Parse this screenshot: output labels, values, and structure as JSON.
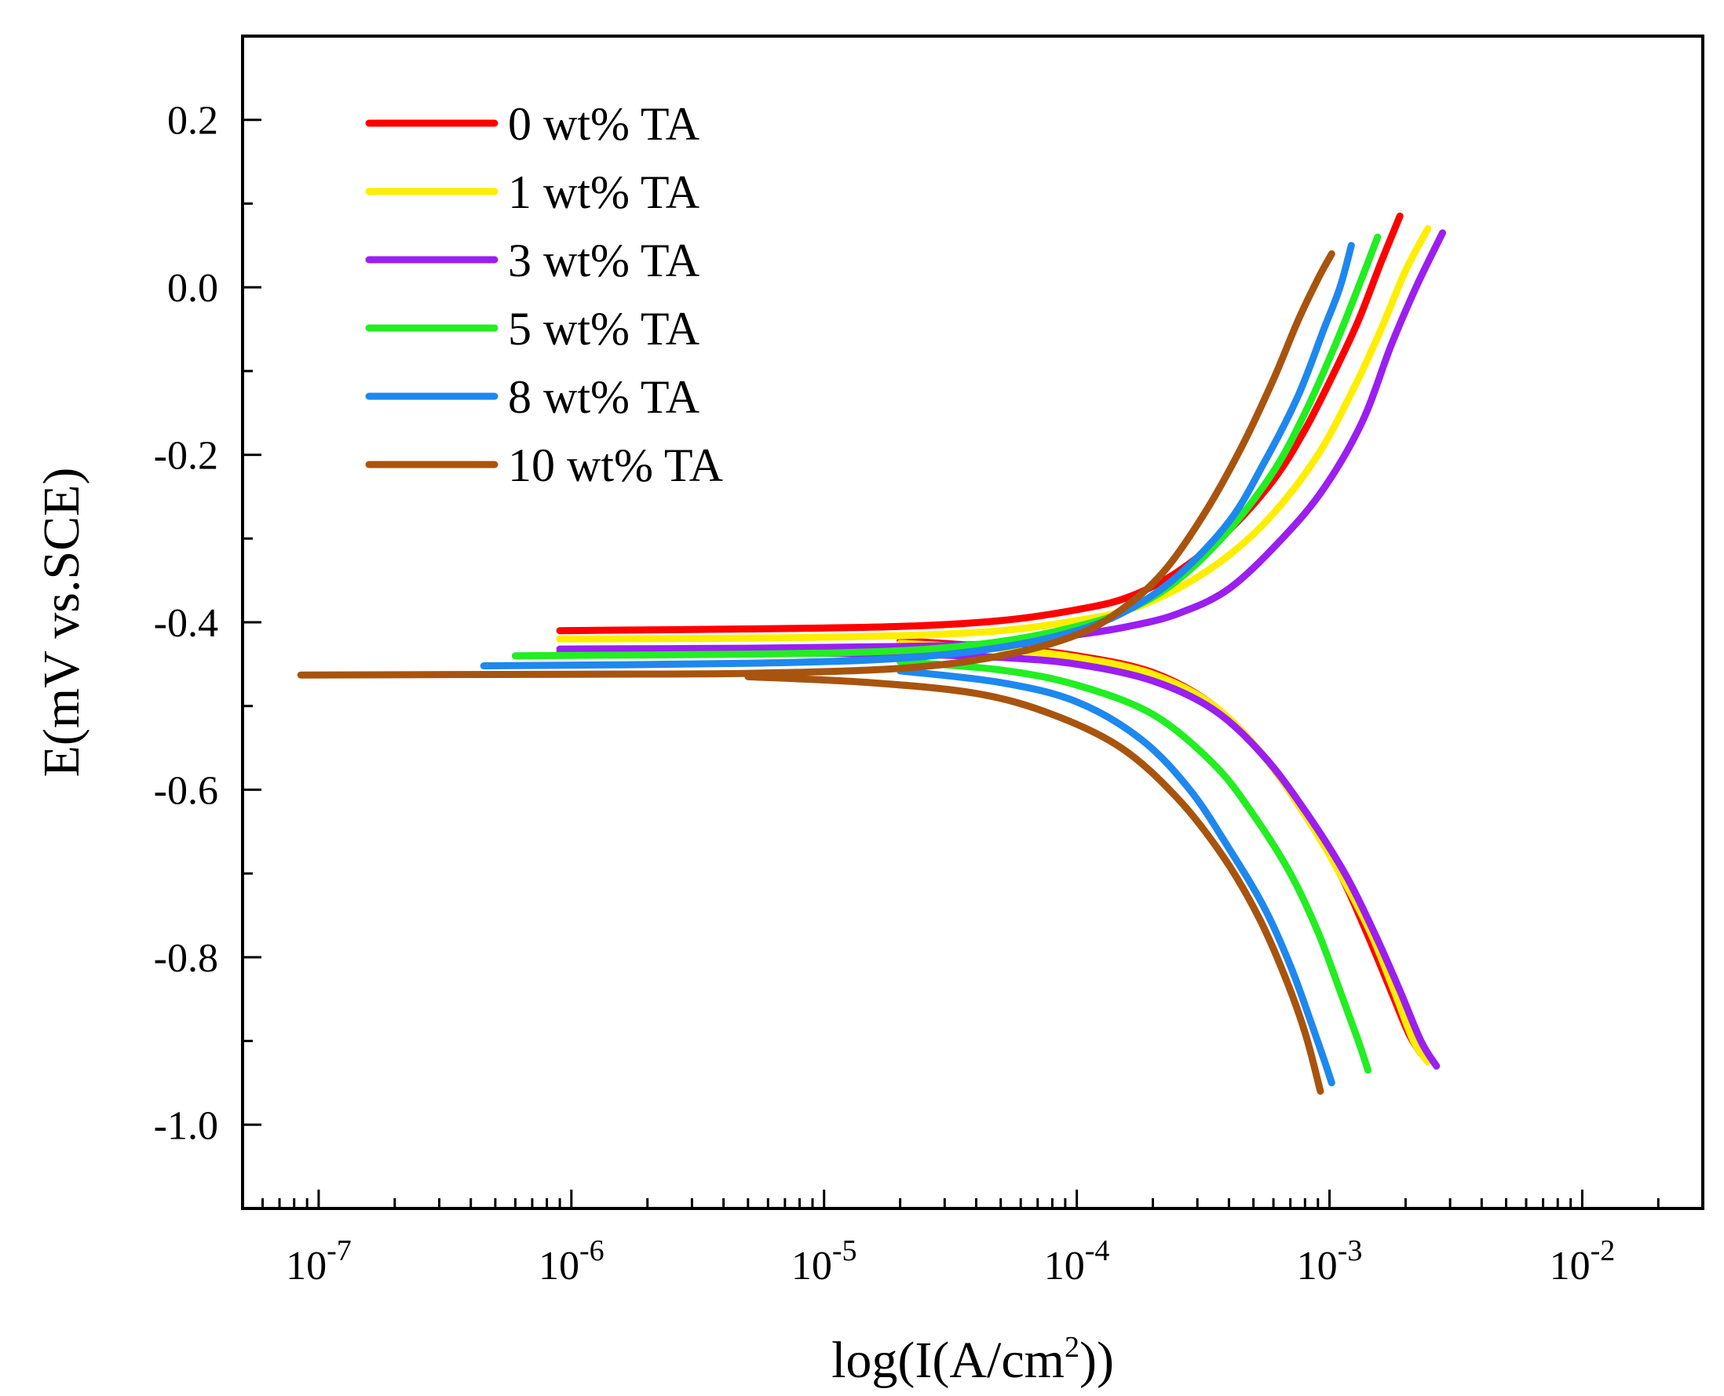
{
  "chart_data": {
    "type": "line",
    "xscale": "log",
    "xlabel": {
      "prefix": "log(I(A/cm",
      "sup": "2",
      "suffix": "))"
    },
    "ylabel": "E(mV vs.SCE)",
    "xlim": [
      5e-08,
      0.03
    ],
    "ylim": [
      -1.1,
      0.3
    ],
    "xticks": [
      {
        "base": "10",
        "exp": "-7",
        "value": 1e-07
      },
      {
        "base": "10",
        "exp": "-6",
        "value": 1e-06
      },
      {
        "base": "10",
        "exp": "-5",
        "value": 1e-05
      },
      {
        "base": "10",
        "exp": "-4",
        "value": 0.0001
      },
      {
        "base": "10",
        "exp": "-3",
        "value": 0.001
      },
      {
        "base": "10",
        "exp": "-2",
        "value": 0.01
      }
    ],
    "yticks": [
      "0.2",
      "0.0",
      "-0.2",
      "-0.4",
      "-0.6",
      "-0.8",
      "-1.0"
    ],
    "series": [
      {
        "name": "0 wt% TA",
        "color": "#ff0000",
        "anodic": [
          [
            9e-07,
            -0.41
          ],
          [
            5e-06,
            -0.408
          ],
          [
            2e-05,
            -0.405
          ],
          [
            5e-05,
            -0.398
          ],
          [
            0.0001,
            -0.385
          ],
          [
            0.00016,
            -0.37
          ],
          [
            0.00025,
            -0.34
          ],
          [
            0.0004,
            -0.29
          ],
          [
            0.0006,
            -0.23
          ],
          [
            0.0008,
            -0.17
          ],
          [
            0.00105,
            -0.1
          ],
          [
            0.0013,
            -0.04
          ],
          [
            0.0016,
            0.03
          ],
          [
            0.0019,
            0.085
          ]
        ],
        "cathodic": [
          [
            2e-05,
            -0.422
          ],
          [
            5e-05,
            -0.43
          ],
          [
            0.0001,
            -0.44
          ],
          [
            0.0002,
            -0.46
          ],
          [
            0.00035,
            -0.5
          ],
          [
            0.00055,
            -0.56
          ],
          [
            0.0008,
            -0.63
          ],
          [
            0.0011,
            -0.7
          ],
          [
            0.0014,
            -0.77
          ],
          [
            0.00175,
            -0.84
          ],
          [
            0.00205,
            -0.89
          ],
          [
            0.0023,
            -0.915
          ]
        ]
      },
      {
        "name": "1 wt% TA",
        "color": "#ffee00",
        "anodic": [
          [
            9e-07,
            -0.42
          ],
          [
            5e-06,
            -0.419
          ],
          [
            2e-05,
            -0.416
          ],
          [
            5e-05,
            -0.41
          ],
          [
            0.0001,
            -0.398
          ],
          [
            0.00016,
            -0.385
          ],
          [
            0.00025,
            -0.36
          ],
          [
            0.0004,
            -0.32
          ],
          [
            0.0006,
            -0.27
          ],
          [
            0.0009,
            -0.2
          ],
          [
            0.00125,
            -0.12
          ],
          [
            0.0016,
            -0.05
          ],
          [
            0.002,
            0.02
          ],
          [
            0.00245,
            0.07
          ]
        ],
        "cathodic": [
          [
            2e-05,
            -0.425
          ],
          [
            5e-05,
            -0.432
          ],
          [
            0.0001,
            -0.442
          ],
          [
            0.0002,
            -0.462
          ],
          [
            0.00035,
            -0.5
          ],
          [
            0.00055,
            -0.56
          ],
          [
            0.0008,
            -0.63
          ],
          [
            0.0011,
            -0.7
          ],
          [
            0.00145,
            -0.77
          ],
          [
            0.0018,
            -0.84
          ],
          [
            0.00215,
            -0.9
          ],
          [
            0.00245,
            -0.925
          ]
        ]
      },
      {
        "name": "3 wt% TA",
        "color": "#9b1ff0",
        "anodic": [
          [
            9e-07,
            -0.432
          ],
          [
            5e-06,
            -0.431
          ],
          [
            2e-05,
            -0.429
          ],
          [
            5e-05,
            -0.425
          ],
          [
            0.0001,
            -0.415
          ],
          [
            0.00016,
            -0.405
          ],
          [
            0.00025,
            -0.39
          ],
          [
            0.0004,
            -0.36
          ],
          [
            0.00065,
            -0.3
          ],
          [
            0.00095,
            -0.24
          ],
          [
            0.00135,
            -0.16
          ],
          [
            0.00175,
            -0.07
          ],
          [
            0.0022,
            0.0
          ],
          [
            0.0028,
            0.065
          ]
        ],
        "cathodic": [
          [
            9e-07,
            -0.435
          ],
          [
            5e-06,
            -0.436
          ],
          [
            2e-05,
            -0.438
          ],
          [
            5e-05,
            -0.442
          ],
          [
            0.0001,
            -0.45
          ],
          [
            0.0002,
            -0.47
          ],
          [
            0.00035,
            -0.505
          ],
          [
            0.00055,
            -0.56
          ],
          [
            0.0008,
            -0.625
          ],
          [
            0.00115,
            -0.7
          ],
          [
            0.0015,
            -0.77
          ],
          [
            0.0019,
            -0.84
          ],
          [
            0.0023,
            -0.9
          ],
          [
            0.00265,
            -0.93
          ]
        ]
      },
      {
        "name": "5 wt% TA",
        "color": "#22ee22",
        "anodic": [
          [
            6e-07,
            -0.44
          ],
          [
            5e-06,
            -0.438
          ],
          [
            2e-05,
            -0.434
          ],
          [
            5e-05,
            -0.423
          ],
          [
            0.0001,
            -0.405
          ],
          [
            0.00016,
            -0.385
          ],
          [
            0.00025,
            -0.35
          ],
          [
            0.0004,
            -0.29
          ],
          [
            0.0006,
            -0.22
          ],
          [
            0.0008,
            -0.15
          ],
          [
            0.00105,
            -0.07
          ],
          [
            0.0013,
            0.0
          ],
          [
            0.00155,
            0.06
          ]
        ],
        "cathodic": [
          [
            2e-05,
            -0.447
          ],
          [
            5e-05,
            -0.457
          ],
          [
            0.0001,
            -0.475
          ],
          [
            0.0002,
            -0.51
          ],
          [
            0.00035,
            -0.57
          ],
          [
            0.0005,
            -0.63
          ],
          [
            0.0007,
            -0.7
          ],
          [
            0.0009,
            -0.77
          ],
          [
            0.0011,
            -0.84
          ],
          [
            0.0013,
            -0.9
          ],
          [
            0.00142,
            -0.935
          ]
        ]
      },
      {
        "name": "8 wt% TA",
        "color": "#1e88ee",
        "anodic": [
          [
            4.5e-07,
            -0.452
          ],
          [
            5e-06,
            -0.449
          ],
          [
            2e-05,
            -0.443
          ],
          [
            5e-05,
            -0.43
          ],
          [
            0.0001,
            -0.41
          ],
          [
            0.00016,
            -0.385
          ],
          [
            0.00025,
            -0.345
          ],
          [
            0.0004,
            -0.28
          ],
          [
            0.00055,
            -0.21
          ],
          [
            0.00075,
            -0.13
          ],
          [
            0.00095,
            -0.05
          ],
          [
            0.0011,
            0.0
          ],
          [
            0.00122,
            0.05
          ]
        ],
        "cathodic": [
          [
            2e-05,
            -0.458
          ],
          [
            5e-05,
            -0.472
          ],
          [
            0.0001,
            -0.495
          ],
          [
            0.00018,
            -0.54
          ],
          [
            0.00028,
            -0.6
          ],
          [
            0.0004,
            -0.67
          ],
          [
            0.00055,
            -0.74
          ],
          [
            0.0007,
            -0.81
          ],
          [
            0.00085,
            -0.88
          ],
          [
            0.00097,
            -0.93
          ],
          [
            0.00102,
            -0.95
          ]
        ]
      },
      {
        "name": "10 wt% TA",
        "color": "#a8540f",
        "anodic": [
          [
            8.5e-08,
            -0.463
          ],
          [
            1e-06,
            -0.462
          ],
          [
            5e-06,
            -0.461
          ],
          [
            2e-05,
            -0.455
          ],
          [
            5e-05,
            -0.44
          ],
          [
            0.0001,
            -0.415
          ],
          [
            0.00015,
            -0.385
          ],
          [
            0.00022,
            -0.34
          ],
          [
            0.00032,
            -0.27
          ],
          [
            0.00045,
            -0.19
          ],
          [
            0.0006,
            -0.11
          ],
          [
            0.00075,
            -0.04
          ],
          [
            0.0009,
            0.01
          ],
          [
            0.00102,
            0.04
          ]
        ],
        "cathodic": [
          [
            5e-06,
            -0.465
          ],
          [
            1.5e-05,
            -0.472
          ],
          [
            4e-05,
            -0.485
          ],
          [
            8e-05,
            -0.51
          ],
          [
            0.00015,
            -0.55
          ],
          [
            0.00025,
            -0.61
          ],
          [
            0.00038,
            -0.68
          ],
          [
            0.00052,
            -0.75
          ],
          [
            0.00066,
            -0.82
          ],
          [
            0.0008,
            -0.89
          ],
          [
            0.00092,
            -0.96
          ]
        ]
      }
    ]
  }
}
